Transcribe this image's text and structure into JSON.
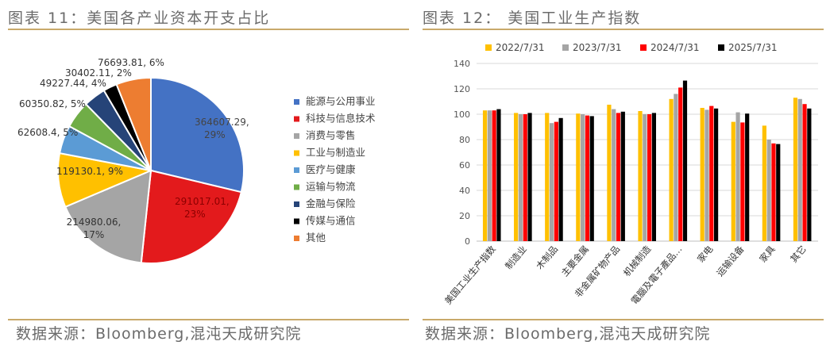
{
  "left_panel": {
    "title": "图表 11：美国各产业资本开支占比",
    "source": "数据来源：Bloomberg,混沌天成研究院"
  },
  "right_panel": {
    "title": "图表 12： 美国工业生产指数",
    "source": "数据来源：Bloomberg,混沌天成研究院"
  },
  "chart_data": [
    {
      "type": "pie",
      "title": "",
      "legend_position": "right",
      "slices": [
        {
          "label": "能源与公用事业",
          "value": 364607.29,
          "pct": "29%",
          "color": "#4472c4",
          "data_label": "364607.29, 29%"
        },
        {
          "label": "科技与信息技术",
          "value": 291017.01,
          "pct": "23%",
          "color": "#e31a1c",
          "data_label": "291017.01, 23%"
        },
        {
          "label": "消费与零售",
          "value": 214980.06,
          "pct": "17%",
          "color": "#a5a5a5",
          "data_label": "214980.06, 17%"
        },
        {
          "label": "工业与制造业",
          "value": 119130.1,
          "pct": "9%",
          "color": "#ffc000",
          "data_label": "119130.1, 9%"
        },
        {
          "label": "医疗与健康",
          "value": 62608.4,
          "pct": "5%",
          "color": "#5b9bd5",
          "data_label": "62608.4, 5%"
        },
        {
          "label": "运输与物流",
          "value": 60350.82,
          "pct": "5%",
          "color": "#70ad47",
          "data_label": "60350.82, 5%"
        },
        {
          "label": "金融与保险",
          "value": 49227.44,
          "pct": "4%",
          "color": "#264478",
          "data_label": "49227.44, 4%"
        },
        {
          "label": "传媒与通信",
          "value": 30402.11,
          "pct": "2%",
          "color": "#000000",
          "data_label": "30402.11, 2%"
        },
        {
          "label": "其他",
          "value": 76693.81,
          "pct": "6%",
          "color": "#ed7d31",
          "data_label": "76693.81, 6%"
        }
      ]
    },
    {
      "type": "bar",
      "title": "",
      "legend_position": "top",
      "ylim": [
        0,
        140
      ],
      "yticks": [
        "0",
        "20",
        "40",
        "60",
        "80",
        "100",
        "120",
        "140"
      ],
      "grid": true,
      "categories": [
        "美国工业生产指数",
        "制造业",
        "木制品",
        "主要金属",
        "非金属矿物产品",
        "机械制造",
        "電腦及電子產品…",
        "家电",
        "运输设备",
        "家具",
        "其它"
      ],
      "series": [
        {
          "name": "2022/7/31",
          "color": "#ffc000",
          "values": [
            103,
            101,
            101,
            100.5,
            107.5,
            102.5,
            112,
            105,
            94,
            91,
            113
          ]
        },
        {
          "name": "2023/7/31",
          "color": "#a5a5a5",
          "values": [
            103,
            100,
            93,
            100,
            104,
            100,
            116,
            103.5,
            101.5,
            80,
            112
          ]
        },
        {
          "name": "2024/7/31",
          "color": "#ff0000",
          "values": [
            103,
            100,
            94,
            99,
            101,
            100,
            121,
            106.5,
            93.5,
            77,
            108
          ]
        },
        {
          "name": "2025/7/31",
          "color": "#000000",
          "values": [
            104,
            101,
            97,
            98.5,
            102,
            101,
            126.5,
            104.5,
            100.5,
            76.5,
            104.5
          ]
        }
      ]
    }
  ]
}
